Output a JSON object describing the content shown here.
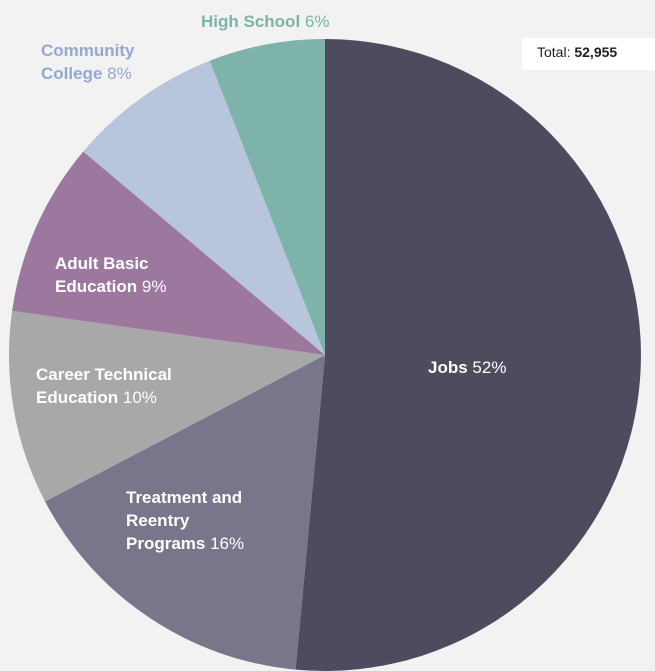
{
  "total": {
    "label": "Total:",
    "value": "52,955"
  },
  "chart_data": {
    "type": "pie",
    "start_angle_deg": 0,
    "direction": "clockwise",
    "slices": [
      {
        "name": "Jobs",
        "percent": 52,
        "percent_label": "52%",
        "color": "#4d4c5f",
        "label_lines": [
          "Jobs"
        ],
        "label_color": "#ffffff"
      },
      {
        "name": "Treatment and Reentry Programs",
        "percent": 16,
        "percent_label": "16%",
        "color": "#78768a",
        "label_lines": [
          "Treatment and",
          "Reentry",
          "Programs"
        ],
        "label_color": "#ffffff"
      },
      {
        "name": "Career Technical Education",
        "percent": 10,
        "percent_label": "10%",
        "color": "#a8a8a8",
        "label_lines": [
          "Career Technical",
          "Education"
        ],
        "label_color": "#ffffff"
      },
      {
        "name": "Adult Basic Education",
        "percent": 9,
        "percent_label": "9%",
        "color": "#9c789e",
        "label_lines": [
          "Adult Basic",
          "Education"
        ],
        "label_color": "#ffffff"
      },
      {
        "name": "Community College",
        "percent": 8,
        "percent_label": "8%",
        "color": "#b7c6dd",
        "label_lines": [
          "Community",
          "College"
        ],
        "label_color": "#94a9cd"
      },
      {
        "name": "High School",
        "percent": 6,
        "percent_label": "6%",
        "color": "#7db3a8",
        "label_lines": [
          "High School"
        ],
        "label_color": "#7db3a8"
      }
    ]
  }
}
